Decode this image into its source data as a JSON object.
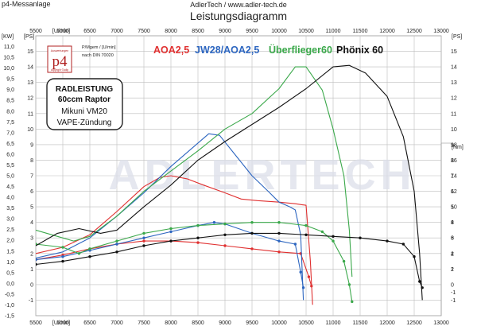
{
  "header": {
    "left": "p4-Messanlage",
    "center": "AdlerTech / www.adler-tech.de",
    "title": "Leistungsdiagramm"
  },
  "logo": {
    "mark": "p4",
    "caption_top": "Auswertungen",
    "caption_bottom": "copyright ©adlp",
    "subtitle": "P/Mgem / [U/min]",
    "norm": "nach DIN 70020"
  },
  "info_box": {
    "lines": [
      "RADLEISTUNG",
      "60ccm Raptor",
      "Mikuni VM20",
      "VAPE-Zündung"
    ]
  },
  "watermark": "ADLERTECH",
  "chart_data": {
    "type": "line",
    "x_axis": {
      "label": "[U/min]",
      "range": [
        5500,
        13000
      ],
      "ticks": [
        5500,
        6000,
        6500,
        7000,
        7500,
        8000,
        8500,
        9000,
        9500,
        10000,
        10500,
        11000,
        11500,
        12000,
        12500,
        13000
      ]
    },
    "y_axis_kw": {
      "label": "[KW]",
      "range": [
        -1.5,
        11.5
      ],
      "ticks": [
        "11,0",
        "10,5",
        "10,0",
        "9,5",
        "9,0",
        "8,5",
        "8,0",
        "7,5",
        "7,0",
        "6,5",
        "6,0",
        "5,5",
        "5,0",
        "4,5",
        "4,0",
        "3,5",
        "3,0",
        "2,5",
        "2,0",
        "1,5",
        "1,0",
        "0,5",
        "0,0",
        "-0,5",
        "-1,0",
        "-1,5"
      ]
    },
    "y_axis_ps": {
      "label": "[PS]",
      "range": [
        -2,
        16
      ],
      "ticks": [
        15,
        14,
        13,
        12,
        11,
        10,
        9,
        8,
        7,
        6,
        5,
        4,
        3,
        2,
        1,
        0,
        -1
      ]
    },
    "y_axis_nm": {
      "label": "[Nm]",
      "ticks": [
        18,
        16,
        14,
        12,
        10,
        8,
        6,
        4,
        2,
        -1
      ],
      "ps_range": [
        -2,
        16
      ]
    },
    "legend": "top",
    "series": [
      {
        "name": "AOA2,5",
        "color": "#e03030",
        "power_ps": [
          [
            5500,
            2.0
          ],
          [
            6000,
            2.4
          ],
          [
            6500,
            3.2
          ],
          [
            7000,
            4.7
          ],
          [
            7500,
            6.3
          ],
          [
            7800,
            6.9
          ],
          [
            8000,
            7.0
          ],
          [
            8300,
            6.8
          ],
          [
            8600,
            6.4
          ],
          [
            9000,
            5.9
          ],
          [
            9300,
            5.5
          ],
          [
            9600,
            5.4
          ],
          [
            10000,
            5.3
          ],
          [
            10300,
            5.2
          ],
          [
            10500,
            5.1
          ],
          [
            10580,
            1.5
          ],
          [
            10620,
            -1.3
          ]
        ],
        "torque_nm": [
          [
            5500,
            1.6
          ],
          [
            6000,
            1.9
          ],
          [
            6500,
            2.3
          ],
          [
            7000,
            2.6
          ],
          [
            7500,
            2.8
          ],
          [
            8000,
            2.8
          ],
          [
            8500,
            2.7
          ],
          [
            9000,
            2.5
          ],
          [
            9500,
            2.3
          ],
          [
            10000,
            2.1
          ],
          [
            10400,
            2.0
          ],
          [
            10550,
            0.5
          ],
          [
            10600,
            -0.1
          ]
        ]
      },
      {
        "name": "JW28/AOA2,5",
        "color": "#2d66c0",
        "power_ps": [
          [
            5500,
            1.7
          ],
          [
            6000,
            2.1
          ],
          [
            6500,
            3.0
          ],
          [
            7000,
            4.4
          ],
          [
            7500,
            5.9
          ],
          [
            8000,
            7.6
          ],
          [
            8400,
            8.8
          ],
          [
            8700,
            9.7
          ],
          [
            8900,
            9.6
          ],
          [
            9200,
            8.3
          ],
          [
            9500,
            7.0
          ],
          [
            9800,
            6.0
          ],
          [
            10000,
            5.3
          ],
          [
            10200,
            5.0
          ],
          [
            10300,
            4.8
          ],
          [
            10400,
            3.2
          ],
          [
            10450,
            -1.0
          ]
        ],
        "torque_nm": [
          [
            5500,
            1.6
          ],
          [
            6000,
            1.8
          ],
          [
            6500,
            2.2
          ],
          [
            7000,
            2.6
          ],
          [
            7500,
            3.0
          ],
          [
            8000,
            3.4
          ],
          [
            8500,
            3.8
          ],
          [
            8800,
            4.0
          ],
          [
            9000,
            3.9
          ],
          [
            9500,
            3.3
          ],
          [
            10000,
            2.8
          ],
          [
            10300,
            2.6
          ],
          [
            10400,
            0.8
          ],
          [
            10450,
            -0.2
          ]
        ]
      },
      {
        "name": "Überflieger60",
        "color": "#3aa84a",
        "power_ps": [
          [
            5500,
            3.5
          ],
          [
            5800,
            3.2
          ],
          [
            6200,
            2.8
          ],
          [
            6500,
            3.1
          ],
          [
            7000,
            4.4
          ],
          [
            7500,
            6.0
          ],
          [
            8000,
            7.3
          ],
          [
            8500,
            8.6
          ],
          [
            9000,
            10.0
          ],
          [
            9500,
            11.0
          ],
          [
            10000,
            12.6
          ],
          [
            10300,
            14.0
          ],
          [
            10500,
            14.0
          ],
          [
            10800,
            12.5
          ],
          [
            11000,
            10.0
          ],
          [
            11200,
            7.0
          ],
          [
            11300,
            3.5
          ],
          [
            11350,
            0.5
          ]
        ],
        "torque_nm": [
          [
            5500,
            2.6
          ],
          [
            6000,
            2.4
          ],
          [
            6300,
            2.0
          ],
          [
            6500,
            2.3
          ],
          [
            7000,
            2.8
          ],
          [
            7500,
            3.3
          ],
          [
            8000,
            3.6
          ],
          [
            8500,
            3.8
          ],
          [
            9000,
            3.9
          ],
          [
            9500,
            4.0
          ],
          [
            10000,
            4.0
          ],
          [
            10500,
            3.8
          ],
          [
            10800,
            3.4
          ],
          [
            11000,
            2.8
          ],
          [
            11200,
            1.5
          ],
          [
            11300,
            0.0
          ],
          [
            11350,
            -1.1
          ]
        ]
      },
      {
        "name": "Phönix 60",
        "color": "#111111",
        "power_ps": [
          [
            5500,
            2.5
          ],
          [
            5900,
            3.3
          ],
          [
            6300,
            3.6
          ],
          [
            6700,
            3.3
          ],
          [
            7000,
            3.5
          ],
          [
            7500,
            5.0
          ],
          [
            8000,
            6.4
          ],
          [
            8500,
            8.0
          ],
          [
            9000,
            9.2
          ],
          [
            9500,
            10.3
          ],
          [
            10000,
            11.4
          ],
          [
            10500,
            12.6
          ],
          [
            11000,
            14.0
          ],
          [
            11300,
            14.1
          ],
          [
            11600,
            13.6
          ],
          [
            12000,
            12.1
          ],
          [
            12300,
            9.5
          ],
          [
            12500,
            6.0
          ],
          [
            12600,
            2.0
          ],
          [
            12650,
            -1.0
          ]
        ],
        "torque_nm": [
          [
            5500,
            1.3
          ],
          [
            6000,
            1.5
          ],
          [
            6500,
            1.8
          ],
          [
            7000,
            2.1
          ],
          [
            7500,
            2.5
          ],
          [
            8000,
            2.8
          ],
          [
            8500,
            3.0
          ],
          [
            9000,
            3.2
          ],
          [
            9500,
            3.3
          ],
          [
            10000,
            3.3
          ],
          [
            10500,
            3.2
          ],
          [
            11000,
            3.1
          ],
          [
            11500,
            3.0
          ],
          [
            12000,
            2.8
          ],
          [
            12300,
            2.6
          ],
          [
            12500,
            1.8
          ],
          [
            12600,
            0.2
          ],
          [
            12650,
            -0.2
          ]
        ]
      }
    ]
  }
}
